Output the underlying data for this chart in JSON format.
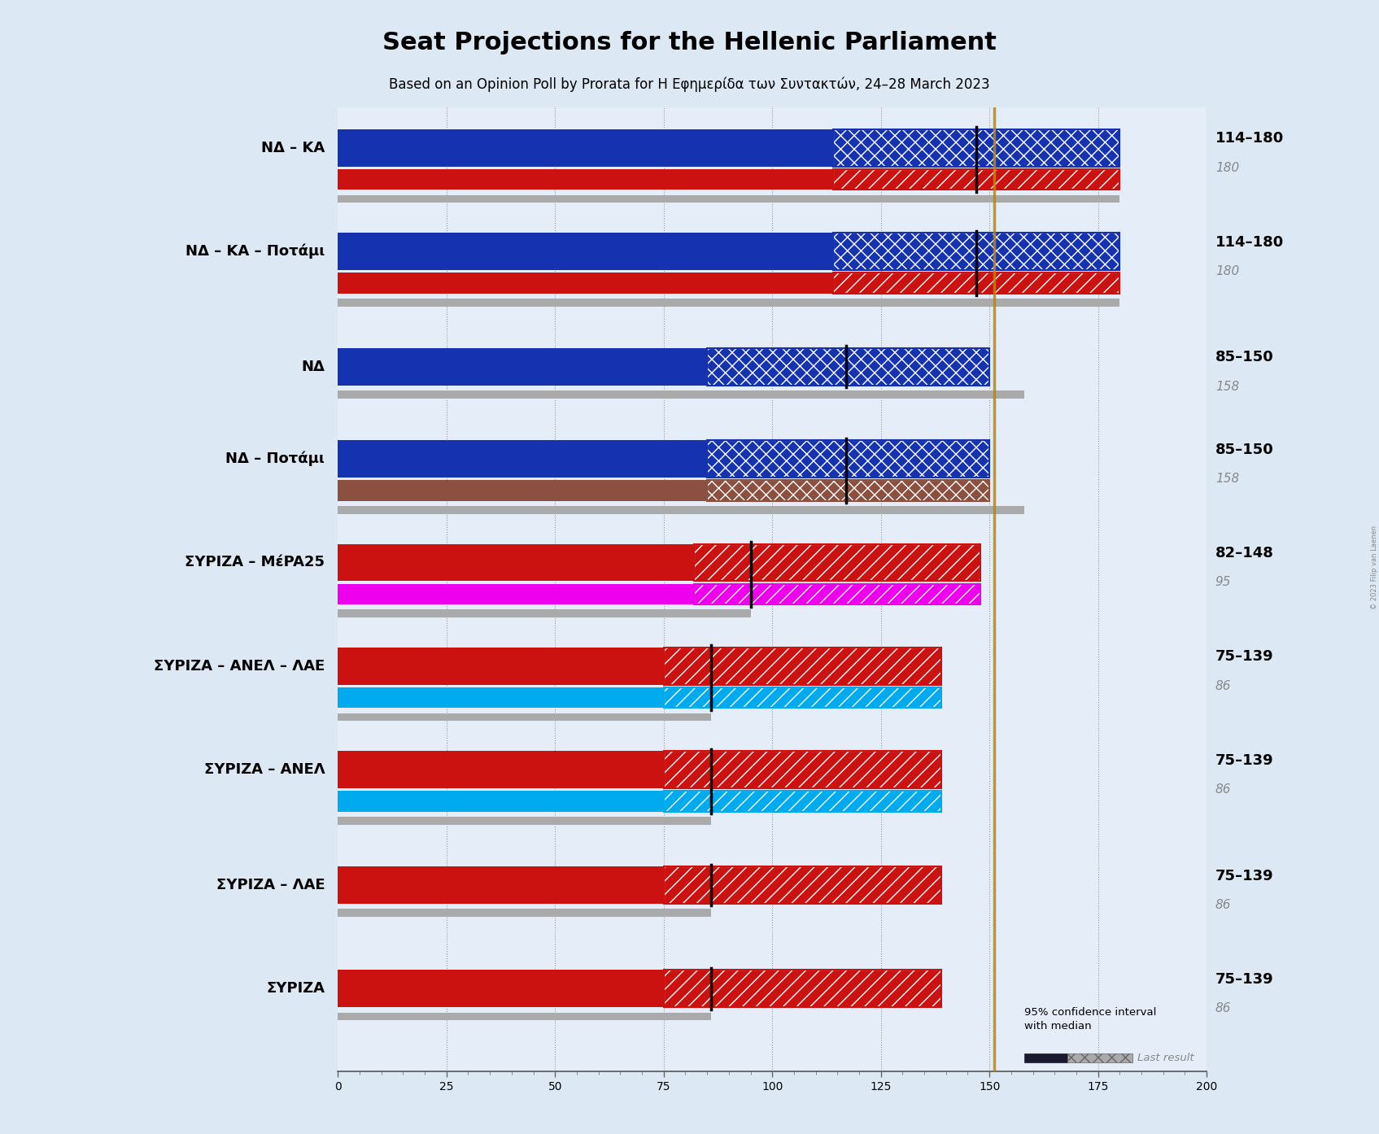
{
  "title": "Seat Projections for the Hellenic Parliament",
  "subtitle": "Based on an Opinion Poll by Prorata for Η Εφημερίδα των Συντακτών, 24–28 March 2023",
  "copyright": "© 2023 Filip van Laenen",
  "background_color": "#dce9f5",
  "plot_bg_color": "#e5edf8",
  "x_min": 0,
  "x_max": 200,
  "x_ticks": [
    0,
    25,
    50,
    75,
    100,
    125,
    150,
    175,
    200
  ],
  "majority_line": 151,
  "coalitions": [
    {
      "name": "ΝΔ – ΚΑ",
      "underline": false,
      "ci_low": 114,
      "ci_high": 180,
      "median": 147,
      "last_result": 180,
      "top_color": "#1533b0",
      "top_hatch": "xx",
      "bot_color": "#cc1111",
      "bot_hatch": "//",
      "has_bottom": true,
      "range_label": "114–180",
      "median_label": "180"
    },
    {
      "name": "ΝΔ – ΚΑ – Ποτάμι",
      "underline": false,
      "ci_low": 114,
      "ci_high": 180,
      "median": 147,
      "last_result": 180,
      "top_color": "#1533b0",
      "top_hatch": "xx",
      "bot_color": "#cc1111",
      "bot_hatch": "//",
      "has_bottom": true,
      "range_label": "114–180",
      "median_label": "180"
    },
    {
      "name": "ΝΔ",
      "underline": true,
      "ci_low": 85,
      "ci_high": 150,
      "median": 117,
      "last_result": 158,
      "top_color": "#1533b0",
      "top_hatch": "xx",
      "bot_color": null,
      "bot_hatch": null,
      "has_bottom": false,
      "range_label": "85–150",
      "median_label": "158"
    },
    {
      "name": "ΝΔ – Ποτάμι",
      "underline": false,
      "ci_low": 85,
      "ci_high": 150,
      "median": 117,
      "last_result": 158,
      "top_color": "#1533b0",
      "top_hatch": "xx",
      "bot_color": "#8b5040",
      "bot_hatch": "xx",
      "has_bottom": true,
      "range_label": "85–150",
      "median_label": "158"
    },
    {
      "name": "ΣΥΡΙΖΑ – ΜέPA25",
      "underline": false,
      "ci_low": 82,
      "ci_high": 148,
      "median": 95,
      "last_result": 95,
      "top_color": "#cc1111",
      "top_hatch": "//",
      "bot_color": "#ee00ee",
      "bot_hatch": "//",
      "has_bottom": true,
      "range_label": "82–148",
      "median_label": "95"
    },
    {
      "name": "ΣΥΡΙΖΑ – ΑΝΕΛ – ΛΑΕ",
      "underline": false,
      "ci_low": 75,
      "ci_high": 139,
      "median": 86,
      "last_result": 86,
      "top_color": "#cc1111",
      "top_hatch": "//",
      "bot_color": "#00aaee",
      "bot_hatch": "//",
      "has_bottom": true,
      "range_label": "75–139",
      "median_label": "86"
    },
    {
      "name": "ΣΥΡΙΖΑ – ΑΝΕΛ",
      "underline": false,
      "ci_low": 75,
      "ci_high": 139,
      "median": 86,
      "last_result": 86,
      "top_color": "#cc1111",
      "top_hatch": "//",
      "bot_color": "#00aaee",
      "bot_hatch": "//",
      "has_bottom": true,
      "range_label": "75–139",
      "median_label": "86"
    },
    {
      "name": "ΣΥΡΙΖΑ – ΛΑΕ",
      "underline": false,
      "ci_low": 75,
      "ci_high": 139,
      "median": 86,
      "last_result": 86,
      "top_color": "#cc1111",
      "top_hatch": "//",
      "bot_color": null,
      "bot_hatch": null,
      "has_bottom": false,
      "range_label": "75–139",
      "median_label": "86"
    },
    {
      "name": "ΣΥΡΙΖΑ",
      "underline": false,
      "ci_low": 75,
      "ci_high": 139,
      "median": 86,
      "last_result": 86,
      "top_color": "#cc1111",
      "top_hatch": "//",
      "bot_color": null,
      "bot_hatch": null,
      "has_bottom": false,
      "range_label": "75–139",
      "median_label": "86"
    }
  ]
}
